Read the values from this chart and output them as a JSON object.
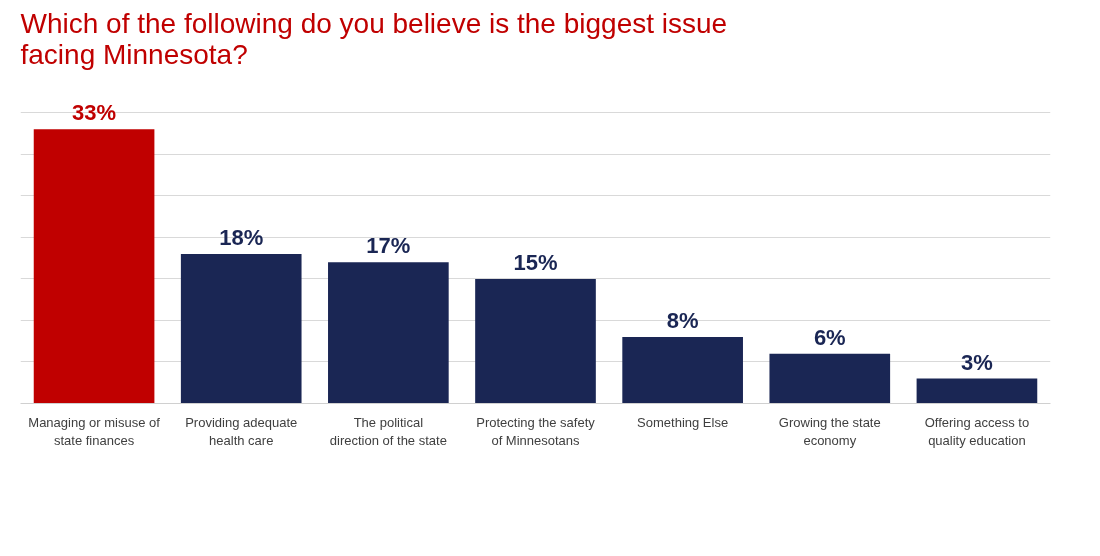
{
  "chart_data": {
    "type": "bar",
    "title": "Which of the following do you believe is the biggest issue facing Minnesota?",
    "categories": [
      "Managing or misuse of state finances",
      "Providing adequate health care",
      "The political direction of the state",
      "Protecting the safety of Minnesotans",
      "Something Else",
      "Growing the state economy",
      "Offering access to quality education"
    ],
    "values": [
      33,
      18,
      17,
      15,
      8,
      6,
      3
    ],
    "colors": [
      "#c00000",
      "#1a2654",
      "#1a2654",
      "#1a2654",
      "#1a2654",
      "#1a2654",
      "#1a2654"
    ],
    "value_labels": [
      "33%",
      "18%",
      "17%",
      "15%",
      "8%",
      "6%",
      "3%"
    ],
    "grid": "y",
    "tick_labels": "x"
  }
}
